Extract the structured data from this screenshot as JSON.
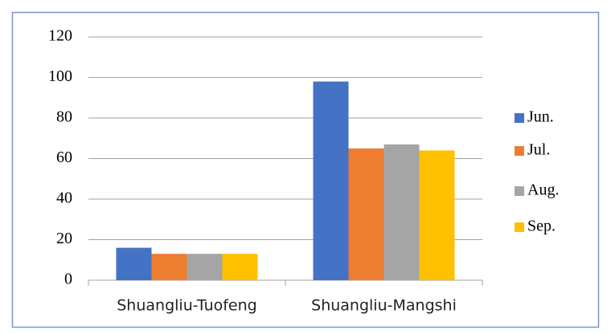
{
  "chart_data": {
    "type": "bar",
    "categories": [
      "Shuangliu-Tuofeng",
      "Shuangliu-Mangshi"
    ],
    "series": [
      {
        "name": "Jun.",
        "color": "#4472c4",
        "values": [
          16,
          98
        ]
      },
      {
        "name": "Jul.",
        "color": "#ed7d31",
        "values": [
          13,
          65
        ]
      },
      {
        "name": "Aug.",
        "color": "#a5a5a5",
        "values": [
          13,
          67
        ]
      },
      {
        "name": "Sep.",
        "color": "#ffc000",
        "values": [
          13,
          64
        ]
      }
    ],
    "ylim": [
      0,
      120
    ],
    "yticks": [
      0,
      20,
      40,
      60,
      80,
      100,
      120
    ],
    "grid": true,
    "legend": "right"
  }
}
